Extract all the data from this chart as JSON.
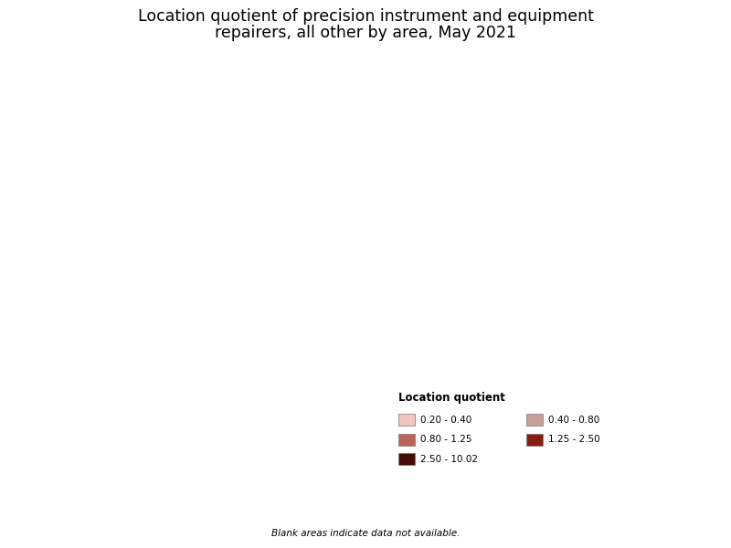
{
  "title_line1": "Location quotient of precision instrument and equipment",
  "title_line2": "repairers, all other by area, May 2021",
  "legend_title": "Location quotient",
  "legend_items": [
    {
      "label": "0.20 - 0.40",
      "color": "#f2c4be"
    },
    {
      "label": "0.40 - 0.80",
      "color": "#c8a098"
    },
    {
      "label": "0.80 - 1.25",
      "color": "#c0645a"
    },
    {
      "label": "1.25 - 2.50",
      "color": "#8b1a10"
    },
    {
      "label": "2.50 - 10.02",
      "color": "#4a0a05"
    }
  ],
  "footnote": "Blank areas indicate data not available.",
  "background_color": "#ffffff",
  "title_fontsize": 12.5
}
